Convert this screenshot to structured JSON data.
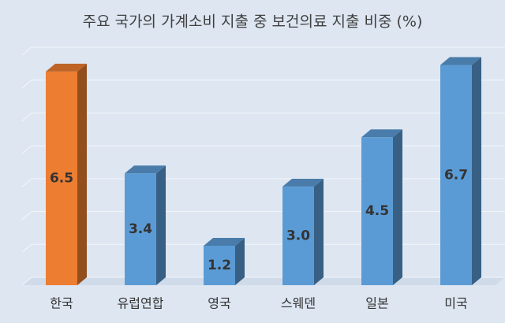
{
  "chart_data": {
    "type": "bar3d",
    "title": "주요 국가의 가계소비 지출 중 보건의료 지출 비중 (%)",
    "categories": [
      "한국",
      "유럽연합",
      "영국",
      "스웨덴",
      "일본",
      "미국"
    ],
    "values": [
      6.5,
      3.4,
      1.2,
      3.0,
      4.5,
      6.7
    ],
    "value_labels": [
      "6.5",
      "3.4",
      "1.2",
      "3.0",
      "4.5",
      "6.7"
    ],
    "colors": [
      "#ed7d31",
      "#5b9bd5",
      "#5b9bd5",
      "#5b9bd5",
      "#5b9bd5",
      "#5b9bd5"
    ],
    "ylim": [
      0,
      7
    ],
    "yticks": [
      0,
      1,
      2,
      3,
      4,
      5,
      6,
      7
    ],
    "grid": true
  }
}
